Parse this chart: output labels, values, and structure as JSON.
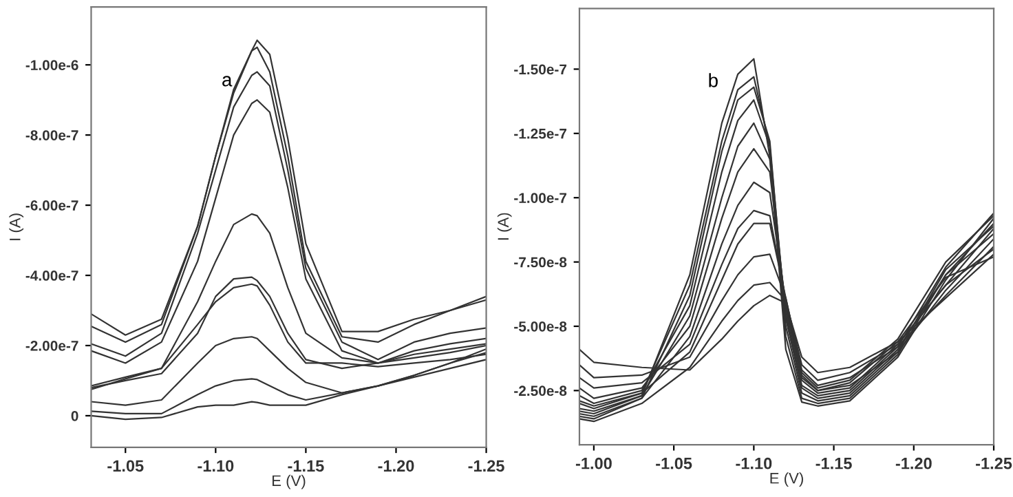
{
  "chart_data": [
    {
      "type": "line",
      "xlabel": "E (V)",
      "ylabel": "I (A)",
      "annotations": [
        "a"
      ],
      "x": [
        -1.031,
        -1.05,
        -1.07,
        -1.09,
        -1.1,
        -1.11,
        -1.12,
        -1.123,
        -1.13,
        -1.14,
        -1.15,
        -1.17,
        -1.19,
        -1.21,
        -1.23,
        -1.25
      ],
      "xlim": [
        -1.031,
        -1.25
      ],
      "ylim": [
        9e-08,
        -1.165e-06
      ],
      "xticks": [
        -1.05,
        {
          "value": -1.1,
          "label": "-1.10"
        },
        -1.15,
        {
          "value": -1.2,
          "label": "-1.20"
        },
        -1.25
      ],
      "yticks": [
        {
          "value": -1e-06,
          "label": "-1.00e-6"
        },
        {
          "value": -8e-07,
          "label": "-8.00e-7"
        },
        {
          "value": -6e-07,
          "label": "-6.00e-7"
        },
        {
          "value": -4e-07,
          "label": "-4.00e-7"
        },
        {
          "value": -2e-07,
          "label": "-2.00e-7"
        },
        0
      ],
      "series": [
        {
          "color": "#333333",
          "values": [
            -2.9e-07,
            -2.3e-07,
            -2.75e-07,
            -5.4e-07,
            -7.4e-07,
            -9.3e-07,
            -1.04e-06,
            -1.07e-06,
            -1.03e-06,
            -7.9e-07,
            -4.9e-07,
            -2.4e-07,
            -2.4e-07,
            -2.75e-07,
            -3e-07,
            -3.4e-07
          ]
        },
        {
          "color": "#333333",
          "values": [
            -2.55e-07,
            -2.1e-07,
            -2.6e-07,
            -5.4e-07,
            -7.4e-07,
            -9.2e-07,
            -1.04e-06,
            -1.05e-06,
            -9.8e-07,
            -7.4e-07,
            -4.4e-07,
            -2.25e-07,
            -2.1e-07,
            -2.6e-07,
            -3e-07,
            -3.3e-07
          ]
        },
        {
          "color": "#333333",
          "values": [
            -2.05e-07,
            -1.7e-07,
            -2.35e-07,
            -5.2e-07,
            -7e-07,
            -8.8e-07,
            -9.7e-07,
            -9.8e-07,
            -9.4e-07,
            -7e-07,
            -4.2e-07,
            -2.1e-07,
            -1.6e-07,
            -2.1e-07,
            -2.35e-07,
            -2.5e-07
          ]
        },
        {
          "color": "#333333",
          "values": [
            -1.85e-07,
            -1.5e-07,
            -2.1e-07,
            -4.4e-07,
            -6.2e-07,
            -8e-07,
            -8.9e-07,
            -9e-07,
            -8.65e-07,
            -6.5e-07,
            -3.9e-07,
            -1.85e-07,
            -1.5e-07,
            -1.85e-07,
            -2.05e-07,
            -2.2e-07
          ]
        },
        {
          "color": "#333333",
          "values": [
            -8.5e-08,
            -1.1e-07,
            -1.35e-07,
            -3.25e-07,
            -4.4e-07,
            -5.45e-07,
            -5.75e-07,
            -5.7e-07,
            -5.2e-07,
            -3.65e-07,
            -2.35e-07,
            -1.65e-07,
            -1.5e-07,
            -1.65e-07,
            -1.8e-07,
            -2e-07
          ]
        },
        {
          "color": "#333333",
          "values": [
            -8e-08,
            -1e-07,
            -1.2e-07,
            -2.35e-07,
            -3.4e-07,
            -3.9e-07,
            -3.95e-07,
            -3.85e-07,
            -3.4e-07,
            -2.35e-07,
            -1.6e-07,
            -1.35e-07,
            -1.5e-07,
            -1.75e-07,
            -1.9e-07,
            -2.05e-07
          ]
        },
        {
          "color": "#333333",
          "values": [
            -7.5e-08,
            -1.05e-07,
            -1.35e-07,
            -2.6e-07,
            -3.25e-07,
            -3.65e-07,
            -3.75e-07,
            -3.7e-07,
            -3.15e-07,
            -2.1e-07,
            -1.5e-07,
            -1.5e-07,
            -1.4e-07,
            -1.5e-07,
            -1.6e-07,
            -1.75e-07
          ]
        },
        {
          "color": "#333333",
          "values": [
            -4e-08,
            -3e-08,
            -4.5e-08,
            -1.5e-07,
            -2e-07,
            -2.2e-07,
            -2.25e-07,
            -2.2e-07,
            -1.85e-07,
            -1.35e-07,
            -9.5e-08,
            -6.5e-08,
            -8.5e-08,
            -1.15e-07,
            -1.5e-07,
            -1.9e-07
          ]
        },
        {
          "color": "#333333",
          "values": [
            -1.3e-08,
            -6e-09,
            -6e-09,
            -6e-08,
            -8.5e-08,
            -1e-07,
            -1.05e-07,
            -1.03e-07,
            -8.5e-08,
            -6e-08,
            -4.5e-08,
            -6.5e-08,
            -8.5e-08,
            -1.1e-07,
            -1.35e-07,
            -1.6e-07
          ]
        },
        {
          "color": "#333333",
          "values": [
            0,
            1e-08,
            5e-09,
            -2.5e-08,
            -3e-08,
            -3e-08,
            -4e-08,
            -3.8e-08,
            -3e-08,
            -3e-08,
            -3e-08,
            -6e-08,
            -8.5e-08,
            -1.15e-07,
            -1.5e-07,
            -1.8e-07
          ]
        }
      ]
    },
    {
      "type": "line",
      "xlabel": "E (V)",
      "ylabel": "I (A)",
      "annotations": [
        "b"
      ],
      "x": [
        -0.991,
        -1.0,
        -1.03,
        -1.06,
        -1.08,
        -1.09,
        -1.1,
        -1.11,
        -1.12,
        -1.13,
        -1.14,
        -1.16,
        -1.19,
        -1.22,
        -1.25
      ],
      "xlim": [
        -0.991,
        -1.25
      ],
      "ylim": [
        -3.9e-09,
        -1.736e-07
      ],
      "xticks": [
        {
          "value": -1.0,
          "label": "-1.00"
        },
        -1.05,
        {
          "value": -1.1,
          "label": "-1.10"
        },
        -1.15,
        {
          "value": -1.2,
          "label": "-1.20"
        },
        -1.25
      ],
      "yticks": [
        {
          "value": -1.5e-07,
          "label": "-1.50e-7"
        },
        {
          "value": -1.25e-07,
          "label": "-1.25e-7"
        },
        {
          "value": -1e-07,
          "label": "-1.00e-7"
        },
        {
          "value": -7.5e-08,
          "label": "-7.50e-8"
        },
        {
          "value": -5e-08,
          "label": "-5.00e-8"
        },
        {
          "value": -2.5e-08,
          "label": "-2.50e-8"
        }
      ],
      "series": [
        {
          "color": "#333333",
          "values": [
            -1.7e-08,
            -1.6e-08,
            -2.3e-08,
            -7e-08,
            -1.29e-07,
            -1.48e-07,
            -1.54e-07,
            -1.16e-07,
            -4.1e-08,
            -2.05e-08,
            -1.9e-08,
            -2.1e-08,
            -3.8e-08,
            -6.8e-08,
            -9.2e-08
          ]
        },
        {
          "color": "#333333",
          "values": [
            -2e-08,
            -1.8e-08,
            -2.4e-08,
            -6.6e-08,
            -1.22e-07,
            -1.42e-07,
            -1.47e-07,
            -1.2e-07,
            -4.6e-08,
            -2.2e-08,
            -2e-08,
            -2.2e-08,
            -3.9e-08,
            -7e-08,
            -9e-08
          ]
        },
        {
          "color": "#333333",
          "values": [
            -1.5e-08,
            -1.4e-08,
            -2.2e-08,
            -6.2e-08,
            -1.18e-07,
            -1.38e-07,
            -1.43e-07,
            -1.22e-07,
            -5e-08,
            -2.4e-08,
            -2.1e-08,
            -2.3e-08,
            -4e-08,
            -7.2e-08,
            -8.9e-08
          ]
        },
        {
          "color": "#333333",
          "values": [
            -2.3e-08,
            -2e-08,
            -2.5e-08,
            -5.8e-08,
            -1.1e-07,
            -1.3e-07,
            -1.38e-07,
            -1.2e-07,
            -5.3e-08,
            -2.6e-08,
            -2.2e-08,
            -2.4e-08,
            -4.1e-08,
            -7e-08,
            -8.6e-08
          ]
        },
        {
          "color": "#333333",
          "values": [
            -1.8e-08,
            -1.7e-08,
            -2.3e-08,
            -5.4e-08,
            -1e-07,
            -1.2e-07,
            -1.29e-07,
            -1.15e-07,
            -5.5e-08,
            -2.7e-08,
            -2.3e-08,
            -2.5e-08,
            -4.2e-08,
            -7.3e-08,
            -9.4e-08
          ]
        },
        {
          "color": "#333333",
          "values": [
            -2.6e-08,
            -2.2e-08,
            -2.6e-08,
            -5e-08,
            -9.2e-08,
            -1.1e-07,
            -1.19e-07,
            -1.1e-07,
            -5.7e-08,
            -2.9e-08,
            -2.4e-08,
            -2.6e-08,
            -4.3e-08,
            -6.6e-08,
            -8e-08
          ]
        },
        {
          "color": "#333333",
          "values": [
            -1.6e-08,
            -1.5e-08,
            -2.2e-08,
            -4.6e-08,
            -8.2e-08,
            -9.7e-08,
            -1.06e-07,
            -1.02e-07,
            -5.9e-08,
            -3e-08,
            -2.5e-08,
            -2.7e-08,
            -4e-08,
            -6.4e-08,
            -8.4e-08
          ]
        },
        {
          "color": "#333333",
          "values": [
            -3e-08,
            -2.6e-08,
            -2.8e-08,
            -4.3e-08,
            -7.4e-08,
            -8.8e-08,
            -9.5e-08,
            -9.3e-08,
            -6e-08,
            -3.1e-08,
            -2.5e-08,
            -2.8e-08,
            -4.4e-08,
            -6.9e-08,
            -7.7e-08
          ]
        },
        {
          "color": "#333333",
          "values": [
            -2.1e-08,
            -1.9e-08,
            -2.4e-08,
            -4e-08,
            -6.8e-08,
            -8.2e-08,
            -9e-08,
            -9e-08,
            -6.1e-08,
            -3.2e-08,
            -2.6e-08,
            -2.9e-08,
            -4.5e-08,
            -7.5e-08,
            -9.3e-08
          ]
        },
        {
          "color": "#333333",
          "values": [
            -3.5e-08,
            -3e-08,
            -3.1e-08,
            -3.8e-08,
            -6e-08,
            -7e-08,
            -7.7e-08,
            -7.8e-08,
            -6.1e-08,
            -3.3e-08,
            -2.7e-08,
            -3e-08,
            -4.2e-08,
            -6.2e-08,
            -8.1e-08
          ]
        },
        {
          "color": "#333333",
          "values": [
            -1.4e-08,
            -1.3e-08,
            -2e-08,
            -3.4e-08,
            -5.2e-08,
            -6e-08,
            -6.6e-08,
            -6.7e-08,
            -6e-08,
            -3.5e-08,
            -2.9e-08,
            -3.2e-08,
            -4.3e-08,
            -6.6e-08,
            -8.8e-08
          ]
        },
        {
          "color": "#333333",
          "values": [
            -4.1e-08,
            -3.6e-08,
            -3.4e-08,
            -3.3e-08,
            -4.5e-08,
            -5.2e-08,
            -5.8e-08,
            -6.2e-08,
            -5.9e-08,
            -3.8e-08,
            -3.2e-08,
            -3.4e-08,
            -4.4e-08,
            -6.1e-08,
            -7.8e-08
          ]
        }
      ]
    }
  ]
}
